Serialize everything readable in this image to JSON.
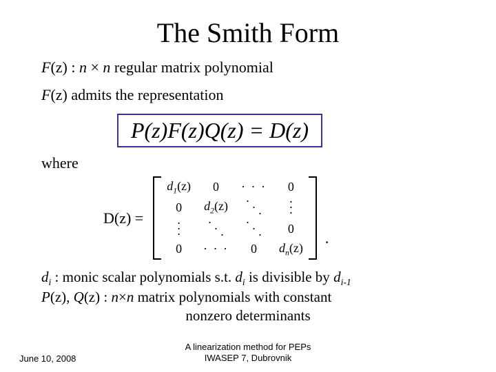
{
  "title": "The Smith Form",
  "line1_prefix": "F",
  "line1_z": "(z)",
  "line1_colon": " : ",
  "line1_n1": "n",
  "line1_times": " × ",
  "line1_n2": "n",
  "line1_rest": " regular matrix polynomial",
  "line2_prefix": "F",
  "line2_z": "(z)",
  "line2_rest": " admits the representation",
  "equation": "P(z)F(z)Q(z) = D(z)",
  "where": "where",
  "dz_label": "D(z) =",
  "matrix": {
    "d1": "d",
    "d1sub": "1",
    "d1arg": "(z)",
    "d2": "d",
    "d2sub": "2",
    "d2arg": "(z)",
    "dn": "d",
    "dnsub": "n",
    "dnarg": "(z)",
    "zero": "0",
    "cdots": "· · ·",
    "vdots": "·\n·\n·"
  },
  "period": ".",
  "defs": {
    "l1a": "d",
    "l1sub": "i",
    "l1b": " : monic scalar polynomials s.t. ",
    "l1c": "d",
    "l1sub2": "i",
    "l1d": " is divisible by ",
    "l1e": "d",
    "l1sub3": "i-1",
    "l2a": "P",
    "l2b": "(z), ",
    "l2c": "Q",
    "l2d": "(z) : ",
    "l2e": "n",
    "l2f": "×",
    "l2g": "n",
    "l2h": " matrix polynomials with constant",
    "l3": "nonzero determinants"
  },
  "footer": {
    "date": "June 10, 2008",
    "mid1": "A linearization method for PEPs",
    "mid2": "IWASEP 7, Dubrovnik"
  }
}
